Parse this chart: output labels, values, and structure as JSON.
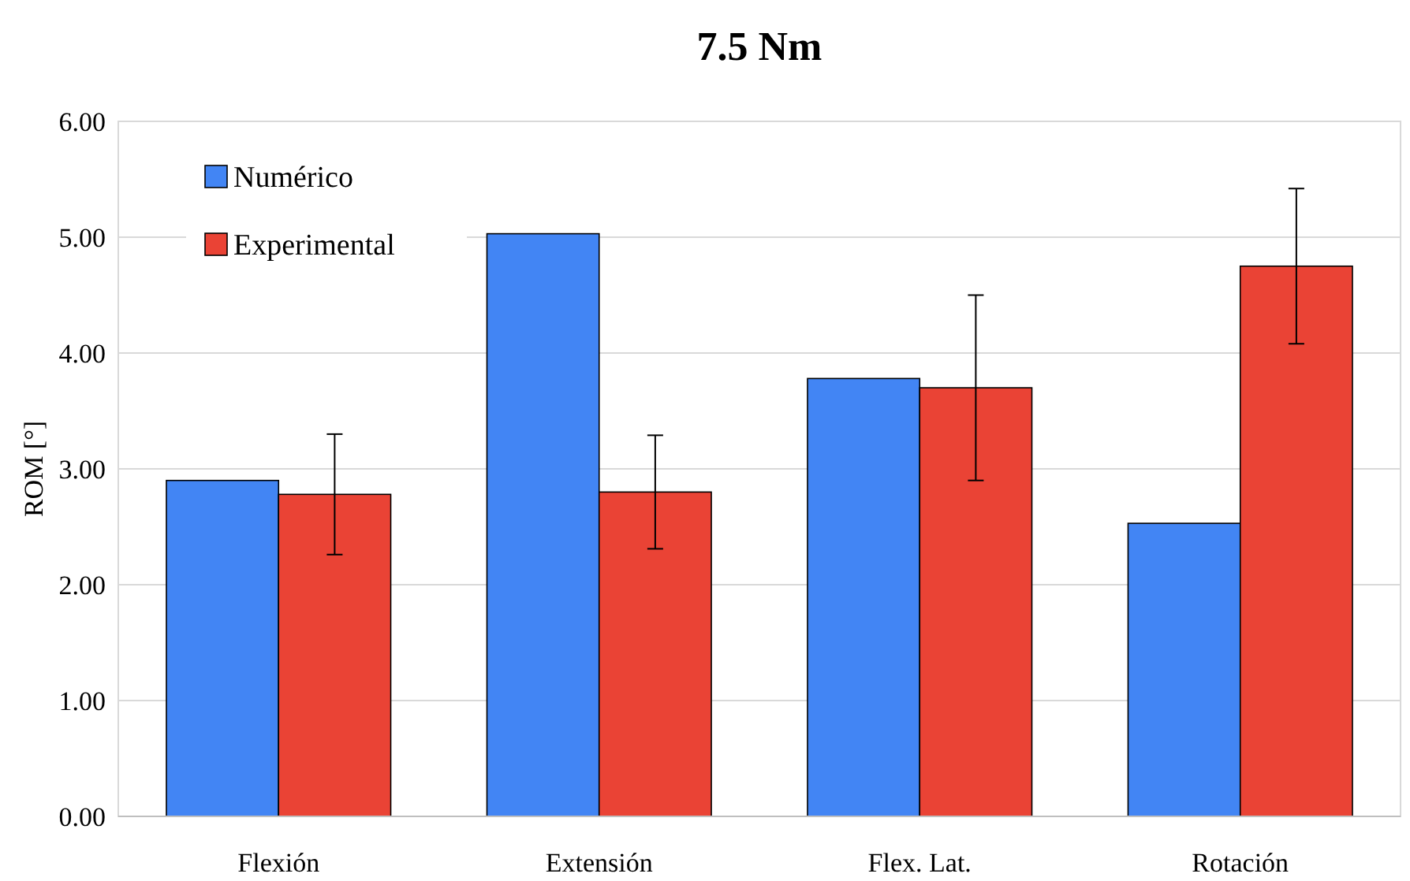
{
  "chart_data": {
    "type": "bar",
    "title": "7.5 Nm",
    "ylabel": "ROM [°]",
    "categories": [
      "Flexión",
      "Extensión",
      "Flex. Lat.",
      "Rotación"
    ],
    "series": [
      {
        "name": "Numérico",
        "color": "#4285f4",
        "values": [
          2.9,
          5.03,
          3.78,
          2.53
        ]
      },
      {
        "name": "Experimental",
        "color": "#ea4335",
        "values": [
          2.78,
          2.8,
          3.7,
          4.75
        ],
        "errors": [
          0.52,
          0.49,
          0.8,
          0.67
        ]
      }
    ],
    "ylim": [
      0,
      6
    ],
    "yticks": [
      {
        "value": 0,
        "label": "0.00"
      },
      {
        "value": 1,
        "label": "1.00"
      },
      {
        "value": 2,
        "label": "2.00"
      },
      {
        "value": 3,
        "label": "3.00"
      },
      {
        "value": 4,
        "label": "4.00"
      },
      {
        "value": 5,
        "label": "5.00"
      },
      {
        "value": 6,
        "label": "6.00"
      }
    ],
    "grid": "y",
    "legend": "top left"
  }
}
